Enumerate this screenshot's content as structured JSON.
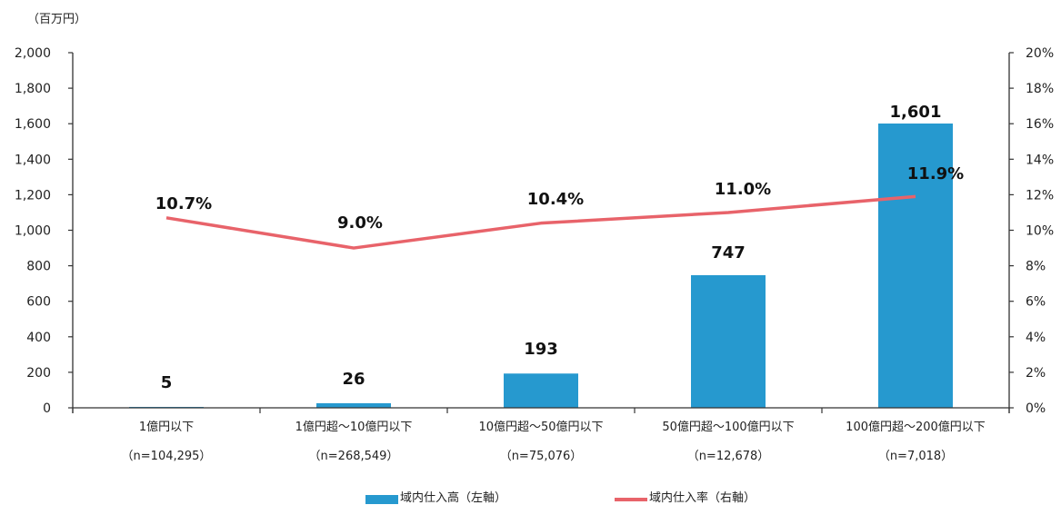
{
  "chart_data": {
    "type": "bar",
    "title": "",
    "unit_label": "（百万円）",
    "categories": [
      "1億円以下",
      "1億円超～10億円以下",
      "10億円超～50億円以下",
      "50億円超～100億円以下",
      "100億円超～200億円以下"
    ],
    "sample_sizes": [
      "（n=104,295）",
      "（n=268,549）",
      "（n=75,076）",
      "（n=12,678）",
      "（n=7,018）"
    ],
    "series": [
      {
        "name": "域内仕入高（左軸）",
        "type": "bar",
        "axis": "left",
        "color": "#2699cf",
        "values": [
          5,
          26,
          193,
          747,
          1601
        ],
        "labels": [
          "5",
          "26",
          "193",
          "747",
          "1,601"
        ]
      },
      {
        "name": "域内仕入率（右軸）",
        "type": "line",
        "axis": "right",
        "color": "#e8636a",
        "values": [
          10.7,
          9.0,
          10.4,
          11.0,
          11.9
        ],
        "labels": [
          "10.7%",
          "9.0%",
          "10.4%",
          "11.0%",
          "11.9%"
        ]
      }
    ],
    "left_axis": {
      "ylim": [
        0,
        2000
      ],
      "ticks": [
        "0",
        "200",
        "400",
        "600",
        "800",
        "1,000",
        "1,200",
        "1,400",
        "1,600",
        "1,800",
        "2,000"
      ]
    },
    "right_axis": {
      "ylim": [
        0,
        20
      ],
      "ticks": [
        "0%",
        "2%",
        "4%",
        "6%",
        "8%",
        "10%",
        "12%",
        "14%",
        "16%",
        "18%",
        "20%"
      ]
    },
    "grid": false,
    "legend_position": "bottom"
  },
  "legend": {
    "bar_label": "域内仕入高（左軸）",
    "line_label": "域内仕入率（右軸）"
  }
}
